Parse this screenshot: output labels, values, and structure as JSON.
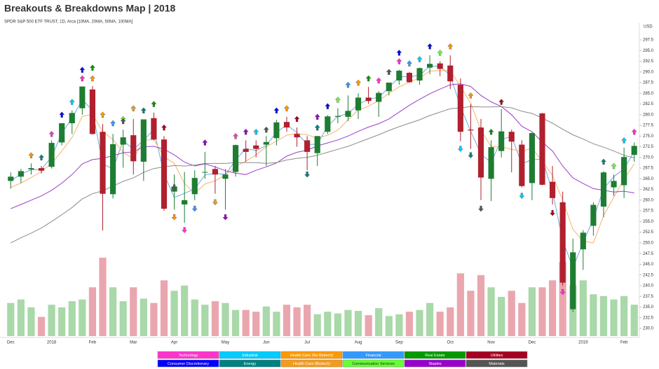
{
  "chart_data": {
    "type": "candlestick",
    "title": "Breakouts & Breakdowns Map | 2018",
    "subtitle": "SPDR S&P 500 ETF TRUST, 1D, Arca  [10MA, 20MA, 50MA, 100MA]",
    "y_axis_label": "USD",
    "categories": [
      "Dec",
      null,
      null,
      null,
      "2018",
      null,
      null,
      null,
      "Feb",
      null,
      null,
      null,
      "Mar",
      null,
      null,
      null,
      "Apr",
      null,
      null,
      null,
      null,
      "May",
      null,
      null,
      null,
      "Jun",
      null,
      null,
      null,
      "Jul",
      null,
      null,
      null,
      null,
      "Aug",
      null,
      null,
      null,
      "Sep",
      null,
      null,
      null,
      null,
      "Oct",
      null,
      null,
      null,
      "Nov",
      null,
      null,
      null,
      "Dec",
      null,
      null,
      null,
      null,
      "2019",
      null,
      null,
      null,
      "Feb",
      null
    ],
    "open": [
      264.5,
      265.5,
      267.2,
      267.5,
      267.8,
      273.5,
      278.0,
      281.5,
      285.9,
      276.0,
      261.4,
      273.0,
      275.2,
      269.0,
      279.2,
      274.2,
      262.0,
      259.0,
      261.4,
      266.5,
      267.3,
      265.0,
      266.6,
      272.0,
      272.8,
      273.0,
      274.5,
      278.3,
      275.5,
      274.0,
      271.0,
      276.0,
      279.5,
      279.5,
      281.0,
      284.0,
      283.0,
      285.5,
      288.0,
      289.8,
      288.0,
      291.0,
      292.0,
      291.5,
      287.0,
      276.5,
      277.0,
      265.0,
      271.5,
      276.0,
      273.0,
      264.0,
      280.3,
      264.3,
      259.5,
      234.5,
      248.5,
      254.0,
      258.5,
      263.0,
      263.5,
      270.6
    ],
    "high": [
      266.5,
      267.3,
      268.6,
      268.0,
      274.0,
      278.0,
      281.0,
      286.6,
      286.7,
      277.8,
      275.5,
      276.5,
      279.0,
      278.9,
      280.5,
      275.0,
      266.0,
      266.6,
      267.0,
      271.3,
      268.0,
      267.3,
      273.0,
      274.0,
      274.0,
      275.0,
      278.8,
      279.5,
      277.0,
      275.0,
      275.0,
      279.9,
      281.5,
      284.5,
      285.0,
      286.5,
      285.5,
      287.5,
      290.5,
      290.0,
      291.0,
      293.9,
      292.5,
      293.9,
      288.5,
      282.5,
      279.0,
      274.0,
      281.3,
      276.5,
      274.0,
      275.8,
      280.4,
      268.0,
      262.0,
      251.0,
      253.0,
      259.5,
      266.8,
      266.0,
      272.3,
      273.5
    ],
    "low": [
      262.7,
      264.0,
      266.0,
      266.2,
      267.4,
      272.8,
      275.5,
      280.0,
      275.3,
      252.9,
      260.4,
      267.6,
      266.0,
      264.5,
      274.0,
      257.5,
      257.8,
      254.7,
      260.0,
      265.0,
      261.5,
      257.8,
      265.5,
      269.0,
      270.0,
      268.0,
      272.8,
      276.0,
      272.5,
      267.0,
      268.0,
      275.5,
      278.0,
      278.5,
      279.0,
      282.5,
      279.5,
      284.5,
      287.0,
      287.5,
      287.0,
      289.5,
      289.0,
      286.0,
      273.8,
      272.0,
      260.0,
      259.8,
      270.0,
      266.5,
      263.0,
      260.0,
      263.5,
      259.0,
      240.0,
      233.8,
      243.7,
      251.7,
      256.0,
      261.0,
      260.5,
      269.0
    ],
    "close": [
      265.5,
      266.8,
      267.5,
      266.9,
      273.4,
      278.0,
      280.4,
      286.6,
      275.5,
      261.5,
      273.1,
      274.7,
      269.1,
      278.9,
      274.2,
      258.0,
      263.2,
      260.0,
      265.2,
      266.6,
      266.0,
      266.0,
      272.9,
      271.3,
      272.0,
      273.6,
      278.2,
      277.0,
      274.7,
      271.3,
      275.0,
      279.6,
      279.7,
      280.9,
      284.0,
      283.2,
      285.1,
      287.5,
      290.3,
      287.6,
      290.9,
      291.9,
      290.7,
      287.8,
      276.0,
      276.3,
      265.3,
      272.4,
      276.1,
      273.7,
      263.3,
      275.7,
      263.6,
      260.5,
      240.7,
      247.8,
      252.4,
      258.9,
      266.5,
      264.5,
      270.1,
      272.7
    ],
    "volume": [
      380,
      420,
      330,
      220,
      360,
      330,
      400,
      420,
      560,
      900,
      560,
      400,
      560,
      430,
      380,
      640,
      520,
      580,
      420,
      360,
      400,
      380,
      300,
      300,
      280,
      340,
      280,
      360,
      330,
      360,
      250,
      280,
      260,
      300,
      290,
      240,
      320,
      230,
      250,
      280,
      300,
      380,
      280,
      330,
      720,
      520,
      700,
      560,
      450,
      520,
      380,
      560,
      560,
      640,
      850,
      580,
      640,
      480,
      460,
      420,
      460,
      360
    ],
    "up_color": "#1e7d32",
    "down_color": "#b0202e",
    "volume_up_color": "#a9d8a9",
    "volume_down_color": "#eaa6ae",
    "moving_averages": [
      {
        "color": "#6fa8dc",
        "values": [
          264.5,
          266.1,
          267.1,
          267.2,
          270.1,
          275.7,
          279.2,
          283.5,
          281.0,
          268.5,
          267.3,
          273.9,
          271.9,
          274.0,
          276.5,
          266.1,
          260.6,
          261.6,
          262.6,
          265.9,
          266.3,
          266.0,
          269.4,
          272.1,
          271.6,
          272.8,
          275.9,
          277.6,
          275.8,
          273.0,
          273.1,
          277.3,
          279.6,
          280.3,
          282.4,
          283.6,
          284.1,
          286.3,
          288.9,
          288.9,
          289.2,
          291.4,
          291.3,
          289.2,
          281.9,
          276.1,
          270.8,
          268.8,
          274.2,
          274.9,
          268.5,
          269.5,
          269.6,
          262.0,
          250.6,
          244.2,
          250.1,
          255.6,
          262.7,
          265.5,
          267.3,
          271.4
        ]
      },
      {
        "color": "#f6b26b",
        "values": [
          263.0,
          264.0,
          265.3,
          266.7,
          268.6,
          271.5,
          274.7,
          279.6,
          280.1,
          276.0,
          274.2,
          271.2,
          269.6,
          274.0,
          274.2,
          270.1,
          268.6,
          263.9,
          261.6,
          263.8,
          264.5,
          265.9,
          267.9,
          269.1,
          270.6,
          272.5,
          273.8,
          275.2,
          275.6,
          275.3,
          274.5,
          275.2,
          276.4,
          278.8,
          281.1,
          282.0,
          283.3,
          285.0,
          286.5,
          287.6,
          288.6,
          290.2,
          290.3,
          290.3,
          286.6,
          282.7,
          276.4,
          272.5,
          272.5,
          271.9,
          271.4,
          272.2,
          269.1,
          265.8,
          260.0,
          253.2,
          250.4,
          250.0,
          256.4,
          260.7,
          264.9,
          268.5
        ]
      },
      {
        "color": "#9b3fc9",
        "values": [
          258.0,
          259.0,
          260.0,
          261.0,
          262.3,
          264.0,
          266.0,
          268.5,
          269.5,
          269.8,
          270.4,
          271.1,
          271.3,
          272.5,
          272.6,
          271.9,
          270.6,
          268.9,
          268.0,
          268.5,
          267.8,
          266.9,
          266.3,
          266.0,
          267.0,
          267.8,
          268.7,
          270.3,
          271.2,
          271.7,
          272.7,
          273.4,
          274.1,
          275.0,
          276.1,
          277.1,
          277.9,
          279.0,
          280.6,
          282.2,
          283.6,
          284.9,
          286.0,
          287.0,
          287.2,
          286.6,
          284.5,
          283.0,
          281.9,
          280.0,
          277.3,
          276.0,
          273.6,
          271.5,
          268.0,
          265.2,
          263.9,
          262.7,
          262.3,
          261.9,
          262.1,
          261.7
        ]
      },
      {
        "color": "#8c8c8c",
        "values": [
          250.0,
          251.2,
          252.3,
          253.5,
          255.0,
          256.6,
          258.3,
          260.3,
          261.5,
          262.2,
          263.3,
          264.4,
          265.2,
          266.5,
          267.4,
          267.8,
          268.1,
          268.0,
          268.2,
          268.6,
          268.6,
          268.6,
          268.8,
          268.8,
          268.8,
          268.6,
          268.8,
          269.4,
          269.8,
          270.0,
          270.5,
          271.2,
          271.9,
          272.6,
          273.5,
          274.4,
          275.3,
          276.3,
          277.2,
          278.0,
          278.8,
          279.8,
          280.6,
          281.4,
          281.6,
          281.9,
          281.8,
          281.8,
          281.9,
          281.6,
          280.8,
          280.3,
          279.2,
          278.0,
          276.6,
          275.3,
          274.3,
          273.2,
          272.4,
          271.5,
          270.5,
          269.9
        ]
      }
    ],
    "ylim": [
      228.2,
      301.1
    ],
    "yticks": [
      {
        "value": 230,
        "label": "230.0"
      },
      232.5,
      {
        "value": 235,
        "label": "235.0"
      },
      237.5,
      {
        "value": 240,
        "label": "240.0"
      },
      242.5,
      {
        "value": 245,
        "label": "245.0"
      },
      247.5,
      {
        "value": 250,
        "label": "250.0"
      },
      252.5,
      {
        "value": 255,
        "label": "255.0"
      },
      257.5,
      {
        "value": 260,
        "label": "260.0"
      },
      262.5,
      {
        "value": 265,
        "label": "265.0"
      },
      267.5,
      {
        "value": 270,
        "label": "270.0"
      },
      272.5,
      {
        "value": 275,
        "label": "275.0"
      },
      277.5,
      {
        "value": 280,
        "label": "280.0"
      },
      282.5,
      {
        "value": 285,
        "label": "285.0"
      },
      287.5,
      {
        "value": 290,
        "label": "290.0"
      },
      292.5,
      {
        "value": 295,
        "label": "295.0"
      },
      297.5
    ],
    "sectors": [
      {
        "name": "Technology",
        "color": "#ff33cc"
      },
      {
        "name": "Industrial",
        "color": "#00ccff"
      },
      {
        "name": "Health Care (No Biotech)",
        "color": "#ff9900"
      },
      {
        "name": "Financial",
        "color": "#3399ff"
      },
      {
        "name": "Real Estate",
        "color": "#009900"
      },
      {
        "name": "Utilities",
        "color": "#a50021"
      },
      {
        "name": "Consumer Discretionary",
        "color": "#0000ff"
      },
      {
        "name": "Energy",
        "color": "#008080"
      },
      {
        "name": "Health Care (Biotech)",
        "color": "#f59a1b"
      },
      {
        "name": "Communication Services",
        "color": "#66ff33"
      },
      {
        "name": "Staples",
        "color": "#9900cc"
      },
      {
        "name": "Materials",
        "color": "#555555"
      }
    ],
    "signals": [
      {
        "sector": 0,
        "index": 4,
        "price": 275.5,
        "direction": "up"
      },
      {
        "sector": 0,
        "index": 7,
        "price": 288.5,
        "direction": "up"
      },
      {
        "sector": 0,
        "index": 22,
        "price": 275,
        "direction": "up"
      },
      {
        "sector": 0,
        "index": 36,
        "price": 288,
        "direction": "up"
      },
      {
        "sector": 0,
        "index": 38,
        "price": 292.5,
        "direction": "up"
      },
      {
        "sector": 0,
        "index": 61,
        "price": 276,
        "direction": "up"
      },
      {
        "sector": 0,
        "index": 17,
        "price": 253,
        "direction": "down"
      },
      {
        "sector": 0,
        "index": 54,
        "price": 238.5,
        "direction": "down"
      },
      {
        "sector": 6,
        "index": 5,
        "price": 280,
        "direction": "up"
      },
      {
        "sector": 6,
        "index": 7,
        "price": 290.5,
        "direction": "up"
      },
      {
        "sector": 6,
        "index": 26,
        "price": 281,
        "direction": "up"
      },
      {
        "sector": 6,
        "index": 31,
        "price": 282,
        "direction": "up"
      },
      {
        "sector": 6,
        "index": 38,
        "price": 294.5,
        "direction": "up"
      },
      {
        "sector": 6,
        "index": 41,
        "price": 296,
        "direction": "up"
      },
      {
        "sector": 1,
        "index": 6,
        "price": 283,
        "direction": "up"
      },
      {
        "sector": 1,
        "index": 24,
        "price": 276,
        "direction": "up"
      },
      {
        "sector": 1,
        "index": 40,
        "price": 293,
        "direction": "up"
      },
      {
        "sector": 1,
        "index": 60,
        "price": 274,
        "direction": "up"
      },
      {
        "sector": 1,
        "index": 44,
        "price": 272,
        "direction": "down"
      },
      {
        "sector": 1,
        "index": 50,
        "price": 261,
        "direction": "down"
      },
      {
        "sector": 7,
        "index": 3,
        "price": 270,
        "direction": "up"
      },
      {
        "sector": 7,
        "index": 13,
        "price": 281,
        "direction": "up"
      },
      {
        "sector": 7,
        "index": 30,
        "price": 277,
        "direction": "up"
      },
      {
        "sector": 7,
        "index": 58,
        "price": 269,
        "direction": "up"
      },
      {
        "sector": 7,
        "index": 29,
        "price": 266,
        "direction": "down"
      },
      {
        "sector": 7,
        "index": 45,
        "price": 270.5,
        "direction": "down"
      },
      {
        "sector": 2,
        "index": 2,
        "price": 270.5,
        "direction": "up"
      },
      {
        "sector": 2,
        "index": 9,
        "price": 280,
        "direction": "up"
      },
      {
        "sector": 2,
        "index": 27,
        "price": 281.5,
        "direction": "up"
      },
      {
        "sector": 2,
        "index": 34,
        "price": 287.5,
        "direction": "up"
      },
      {
        "sector": 2,
        "index": 43,
        "price": 296,
        "direction": "up"
      },
      {
        "sector": 2,
        "index": 16,
        "price": 256,
        "direction": "down"
      },
      {
        "sector": 8,
        "index": 8,
        "price": 288.5,
        "direction": "up"
      },
      {
        "sector": 8,
        "index": 12,
        "price": 281.5,
        "direction": "up"
      },
      {
        "sector": 8,
        "index": 45,
        "price": 284.5,
        "direction": "up"
      },
      {
        "sector": 8,
        "index": 20,
        "price": 259.5,
        "direction": "down"
      },
      {
        "sector": 3,
        "index": 10,
        "price": 278,
        "direction": "up"
      },
      {
        "sector": 3,
        "index": 33,
        "price": 287,
        "direction": "up"
      },
      {
        "sector": 3,
        "index": 39,
        "price": 292,
        "direction": "up"
      },
      {
        "sector": 3,
        "index": 18,
        "price": 258,
        "direction": "down"
      },
      {
        "sector": 9,
        "index": 11,
        "price": 279,
        "direction": "up"
      },
      {
        "sector": 9,
        "index": 32,
        "price": 283.5,
        "direction": "up"
      },
      {
        "sector": 9,
        "index": 42,
        "price": 294.5,
        "direction": "up"
      },
      {
        "sector": 9,
        "index": 59,
        "price": 268,
        "direction": "up"
      },
      {
        "sector": 4,
        "index": 8,
        "price": 291,
        "direction": "up"
      },
      {
        "sector": 4,
        "index": 14,
        "price": 282.5,
        "direction": "up"
      },
      {
        "sector": 4,
        "index": 35,
        "price": 288.5,
        "direction": "up"
      },
      {
        "sector": 4,
        "index": 47,
        "price": 276,
        "direction": "up"
      },
      {
        "sector": 10,
        "index": 19,
        "price": 273.5,
        "direction": "up"
      },
      {
        "sector": 10,
        "index": 23,
        "price": 276,
        "direction": "up"
      },
      {
        "sector": 10,
        "index": 30,
        "price": 279.5,
        "direction": "up"
      },
      {
        "sector": 10,
        "index": 21,
        "price": 256,
        "direction": "down"
      },
      {
        "sector": 5,
        "index": 15,
        "price": 277,
        "direction": "up"
      },
      {
        "sector": 5,
        "index": 28,
        "price": 279,
        "direction": "up"
      },
      {
        "sector": 5,
        "index": 48,
        "price": 283,
        "direction": "up"
      },
      {
        "sector": 5,
        "index": 53,
        "price": 257,
        "direction": "down"
      },
      {
        "sector": 11,
        "index": 11,
        "price": 278.5,
        "direction": "up"
      },
      {
        "sector": 11,
        "index": 25,
        "price": 276.5,
        "direction": "up"
      },
      {
        "sector": 11,
        "index": 37,
        "price": 290,
        "direction": "up"
      },
      {
        "sector": 11,
        "index": 16,
        "price": 263,
        "direction": "down"
      },
      {
        "sector": 11,
        "index": 46,
        "price": 258,
        "direction": "down"
      }
    ]
  }
}
